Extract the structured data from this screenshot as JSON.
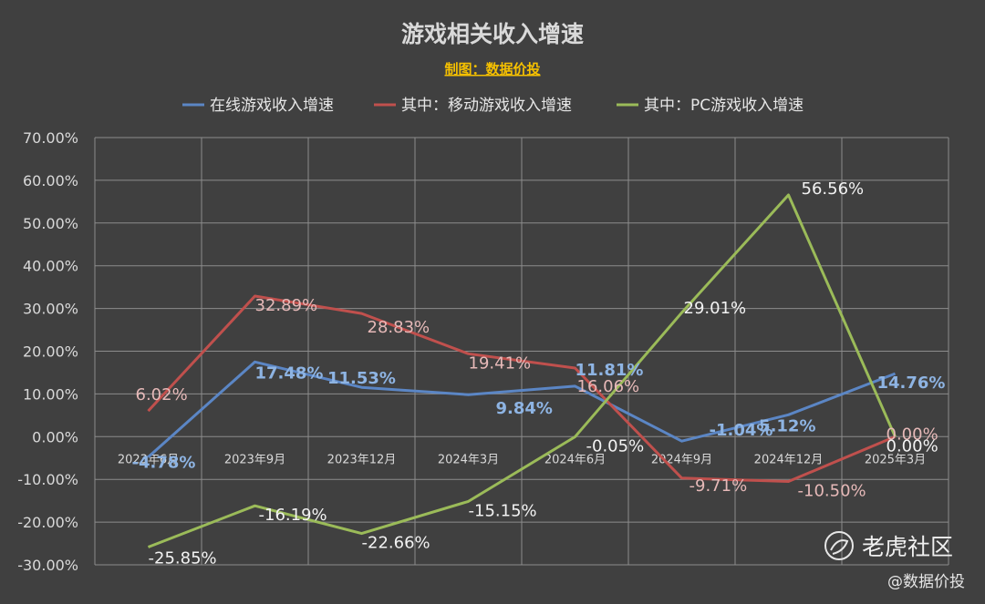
{
  "chart_data": {
    "type": "line",
    "title": "游戏相关收入增速",
    "subtitle": "制图：数据价投",
    "categories": [
      "2023年6月",
      "2023年9月",
      "2023年12月",
      "2024年3月",
      "2024年6月",
      "2024年9月",
      "2024年12月",
      "2025年3月"
    ],
    "y_ticks": [
      "70.00%",
      "60.00%",
      "50.00%",
      "40.00%",
      "30.00%",
      "20.00%",
      "10.00%",
      "0.00%",
      "-10.00%",
      "-20.00%",
      "-30.00%"
    ],
    "ylim": [
      -30,
      70
    ],
    "grid": true,
    "legend_position": "top",
    "series": [
      {
        "name": "在线游戏收入增速",
        "color": "#5b86c5",
        "values": [
          -4.78,
          17.48,
          11.53,
          9.84,
          11.81,
          -1.04,
          5.12,
          14.76
        ],
        "labels": [
          "-4.78%",
          "17.48%",
          "11.53%",
          "9.84%",
          "11.81%",
          "-1.04%",
          "5.12%",
          "14.76%"
        ]
      },
      {
        "name": "其中：移动游戏收入增速",
        "color": "#c0504d",
        "values": [
          6.02,
          32.89,
          28.83,
          19.41,
          16.06,
          -9.71,
          -10.5,
          0.0
        ],
        "labels": [
          "6.02%",
          "32.89%",
          "28.83%",
          "19.41%",
          "16.06%",
          "-9.71%",
          "-10.50%",
          "0.00%"
        ]
      },
      {
        "name": "其中：PC游戏收入增速",
        "color": "#9bbb59",
        "values": [
          -25.85,
          -16.19,
          -22.66,
          -15.15,
          -0.05,
          29.01,
          56.56,
          0.0
        ],
        "labels": [
          "-25.85%",
          "-16.19%",
          "-22.66%",
          "-15.15%",
          "-0.05%",
          "29.01%",
          "56.56%",
          "0.00%"
        ]
      }
    ]
  },
  "watermark": {
    "brand": "老虎社区",
    "handle": "@数据价投"
  }
}
